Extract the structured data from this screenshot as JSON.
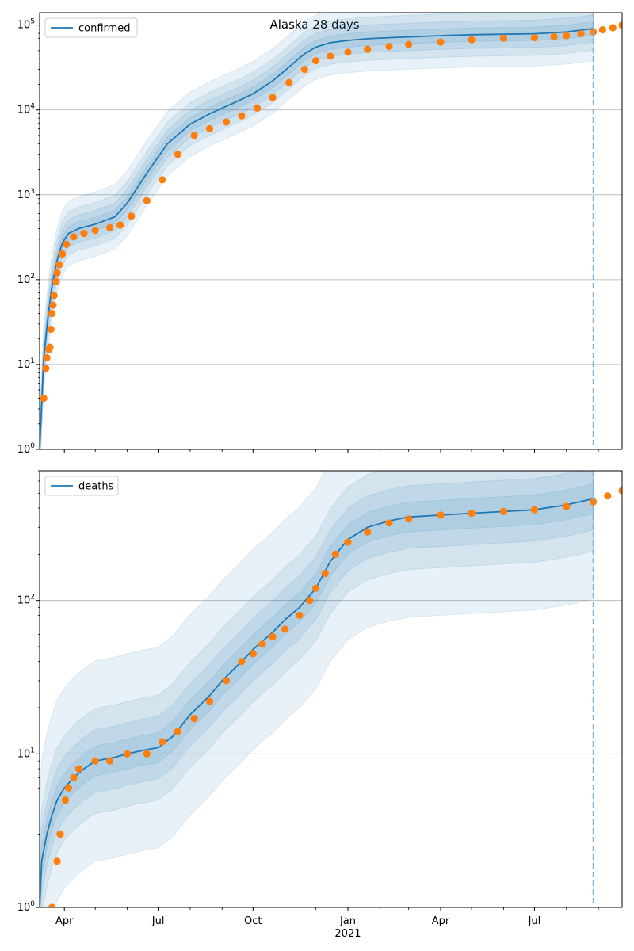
{
  "figure_title": "Alaska 28 days",
  "colors": {
    "model": "#1f77b4",
    "observed": "#ff7f0e",
    "band": "#1f77b4",
    "grid": "#b0b0b0",
    "forecast_line": "#7fb0d6"
  },
  "chart_data": [
    {
      "type": "line",
      "name": "confirmed-panel",
      "y_scale": "log",
      "ylim": [
        1,
        140000
      ],
      "x_range": [
        "2020-03-08",
        "2021-09-24"
      ],
      "forecast_start": "2021-08-27",
      "grid": "y-major",
      "legend": {
        "label": "confirmed",
        "position": "top-left"
      },
      "y_ticks": [
        {
          "value": 1,
          "base": "10",
          "exp": "0"
        },
        {
          "value": 10,
          "base": "10",
          "exp": "1"
        },
        {
          "value": 100,
          "base": "10",
          "exp": "2"
        },
        {
          "value": 1000,
          "base": "10",
          "exp": "3"
        },
        {
          "value": 10000,
          "base": "10",
          "exp": "4"
        },
        {
          "value": 100000,
          "base": "10",
          "exp": "5"
        }
      ],
      "model": {
        "x": [
          "2020-03-08",
          "2020-03-12",
          "2020-03-16",
          "2020-03-20",
          "2020-03-25",
          "2020-03-30",
          "2020-04-05",
          "2020-04-15",
          "2020-05-01",
          "2020-05-20",
          "2020-06-01",
          "2020-06-20",
          "2020-07-10",
          "2020-08-01",
          "2020-08-20",
          "2020-09-15",
          "2020-10-01",
          "2020-10-20",
          "2020-11-05",
          "2020-11-20",
          "2020-12-01",
          "2020-12-15",
          "2021-01-01",
          "2021-01-20",
          "2021-02-10",
          "2021-03-01",
          "2021-04-01",
          "2021-05-01",
          "2021-06-01",
          "2021-07-01",
          "2021-08-01",
          "2021-08-27"
        ],
        "y": [
          1,
          12,
          35,
          85,
          170,
          270,
          350,
          400,
          450,
          550,
          800,
          1800,
          4000,
          6800,
          9000,
          12500,
          15500,
          22000,
          32000,
          46000,
          55000,
          62000,
          66000,
          69000,
          71000,
          72500,
          75000,
          77000,
          78000,
          79000,
          83000,
          91000
        ]
      },
      "band_scale": [
        2.4,
        1.8,
        1.45,
        1.2
      ],
      "observed": {
        "x": [
          "2020-03-12",
          "2020-03-14",
          "2020-03-15",
          "2020-03-17",
          "2020-03-18",
          "2020-03-19",
          "2020-03-20",
          "2020-03-21",
          "2020-03-22",
          "2020-03-24",
          "2020-03-25",
          "2020-03-27",
          "2020-03-30",
          "2020-04-03",
          "2020-04-10",
          "2020-04-20",
          "2020-05-01",
          "2020-05-15",
          "2020-05-25",
          "2020-06-05",
          "2020-06-20",
          "2020-07-05",
          "2020-07-20",
          "2020-08-05",
          "2020-08-20",
          "2020-09-05",
          "2020-09-20",
          "2020-10-05",
          "2020-10-20",
          "2020-11-05",
          "2020-11-20",
          "2020-12-01",
          "2020-12-15",
          "2021-01-01",
          "2021-01-20",
          "2021-02-10",
          "2021-03-01",
          "2021-04-01",
          "2021-05-01",
          "2021-06-01",
          "2021-07-01",
          "2021-07-20",
          "2021-08-01",
          "2021-08-15",
          "2021-08-27",
          "2021-09-05",
          "2021-09-15",
          "2021-09-24"
        ],
        "y": [
          4,
          9,
          12,
          15,
          16,
          26,
          40,
          50,
          65,
          95,
          120,
          150,
          200,
          260,
          320,
          350,
          380,
          410,
          440,
          560,
          850,
          1500,
          3000,
          5000,
          6000,
          7200,
          8500,
          10500,
          14000,
          21000,
          30000,
          38000,
          43000,
          48000,
          52000,
          56000,
          59000,
          63000,
          67000,
          70000,
          71000,
          73000,
          75000,
          79000,
          83000,
          88000,
          93000,
          100000
        ]
      }
    },
    {
      "type": "line",
      "name": "deaths-panel",
      "y_scale": "log",
      "ylim": [
        1,
        700
      ],
      "x_range": [
        "2020-03-08",
        "2021-09-24"
      ],
      "forecast_start": "2021-08-27",
      "grid": "y-major",
      "legend": {
        "label": "deaths",
        "position": "top-left"
      },
      "y_ticks": [
        {
          "value": 1,
          "base": "10",
          "exp": "0"
        },
        {
          "value": 10,
          "base": "10",
          "exp": "1"
        },
        {
          "value": 100,
          "base": "10",
          "exp": "2"
        }
      ],
      "x_ticks": [
        {
          "date": "2020-04-01",
          "label": "Apr"
        },
        {
          "date": "2020-07-01",
          "label": "Jul"
        },
        {
          "date": "2020-10-01",
          "label": "Oct"
        },
        {
          "date": "2021-01-01",
          "label": "Jan",
          "sublabel": "2021"
        },
        {
          "date": "2021-04-01",
          "label": "Apr"
        },
        {
          "date": "2021-07-01",
          "label": "Jul"
        }
      ],
      "x_minor_ticks": [
        "2020-05-01",
        "2020-06-01",
        "2020-08-01",
        "2020-09-01",
        "2020-11-01",
        "2020-12-01",
        "2021-02-01",
        "2021-03-01",
        "2021-05-01",
        "2021-06-01",
        "2021-08-01",
        "2021-09-01"
      ],
      "model": {
        "x": [
          "2020-03-08",
          "2020-03-10",
          "2020-03-15",
          "2020-03-20",
          "2020-03-25",
          "2020-04-01",
          "2020-04-10",
          "2020-04-20",
          "2020-05-01",
          "2020-05-20",
          "2020-06-01",
          "2020-06-15",
          "2020-07-01",
          "2020-07-15",
          "2020-08-01",
          "2020-08-20",
          "2020-09-01",
          "2020-09-20",
          "2020-10-01",
          "2020-10-20",
          "2020-11-01",
          "2020-11-15",
          "2020-12-01",
          "2020-12-15",
          "2021-01-01",
          "2021-01-20",
          "2021-02-10",
          "2021-03-01",
          "2021-04-01",
          "2021-05-01",
          "2021-06-01",
          "2021-07-01",
          "2021-08-01",
          "2021-08-27"
        ],
        "y": [
          1,
          2,
          3,
          4,
          5,
          6,
          7,
          8,
          9,
          9.5,
          10,
          10.5,
          11,
          13,
          18,
          24,
          30,
          40,
          48,
          62,
          75,
          90,
          120,
          180,
          250,
          300,
          330,
          350,
          360,
          370,
          380,
          390,
          420,
          460
        ]
      },
      "band_scale": [
        4.5,
        2.2,
        1.6,
        1.25
      ],
      "observed": {
        "x": [
          "2020-03-20",
          "2020-03-25",
          "2020-03-28",
          "2020-04-02",
          "2020-04-05",
          "2020-04-10",
          "2020-04-15",
          "2020-05-01",
          "2020-05-15",
          "2020-06-01",
          "2020-06-20",
          "2020-07-05",
          "2020-07-20",
          "2020-08-05",
          "2020-08-20",
          "2020-09-05",
          "2020-09-20",
          "2020-10-01",
          "2020-10-10",
          "2020-10-20",
          "2020-11-01",
          "2020-11-15",
          "2020-11-25",
          "2020-12-01",
          "2020-12-10",
          "2020-12-20",
          "2021-01-01",
          "2021-01-20",
          "2021-02-10",
          "2021-03-01",
          "2021-04-01",
          "2021-05-01",
          "2021-06-01",
          "2021-07-01",
          "2021-08-01",
          "2021-08-27",
          "2021-09-10",
          "2021-09-24"
        ],
        "y": [
          1,
          2,
          3,
          5,
          6,
          7,
          8,
          9,
          9,
          10,
          10,
          12,
          14,
          17,
          22,
          30,
          40,
          45,
          52,
          58,
          65,
          80,
          100,
          120,
          150,
          200,
          240,
          280,
          320,
          340,
          360,
          370,
          380,
          390,
          410,
          440,
          480,
          520
        ]
      }
    }
  ]
}
